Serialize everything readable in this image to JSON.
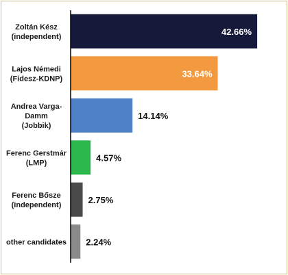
{
  "chart_data": {
    "type": "bar",
    "orientation": "horizontal",
    "categories": [
      [
        "Zoltán Kész",
        "(independent)"
      ],
      [
        "Lajos Némedi",
        "(Fidesz-KDNP)"
      ],
      [
        "Andrea Varga-",
        "Damm",
        "(Jobbik)"
      ],
      [
        "Ferenc Gerstmár",
        "(LMP)"
      ],
      [
        "Ferenc Bősze",
        "(independent)"
      ],
      [
        "other candidates"
      ]
    ],
    "values": [
      42.66,
      33.64,
      14.14,
      4.57,
      2.75,
      2.24
    ],
    "value_labels": [
      "42.66%",
      "33.64%",
      "14.14%",
      "4.57%",
      "2.75%",
      "2.24%"
    ],
    "colors": [
      "#151a3a",
      "#f39a40",
      "#4f81c6",
      "#2db84e",
      "#4a4a4a",
      "#8a8a8a"
    ],
    "label_inside": [
      true,
      true,
      false,
      false,
      false,
      false
    ],
    "xlim": [
      0,
      45
    ],
    "grid": false,
    "legend": "none"
  }
}
